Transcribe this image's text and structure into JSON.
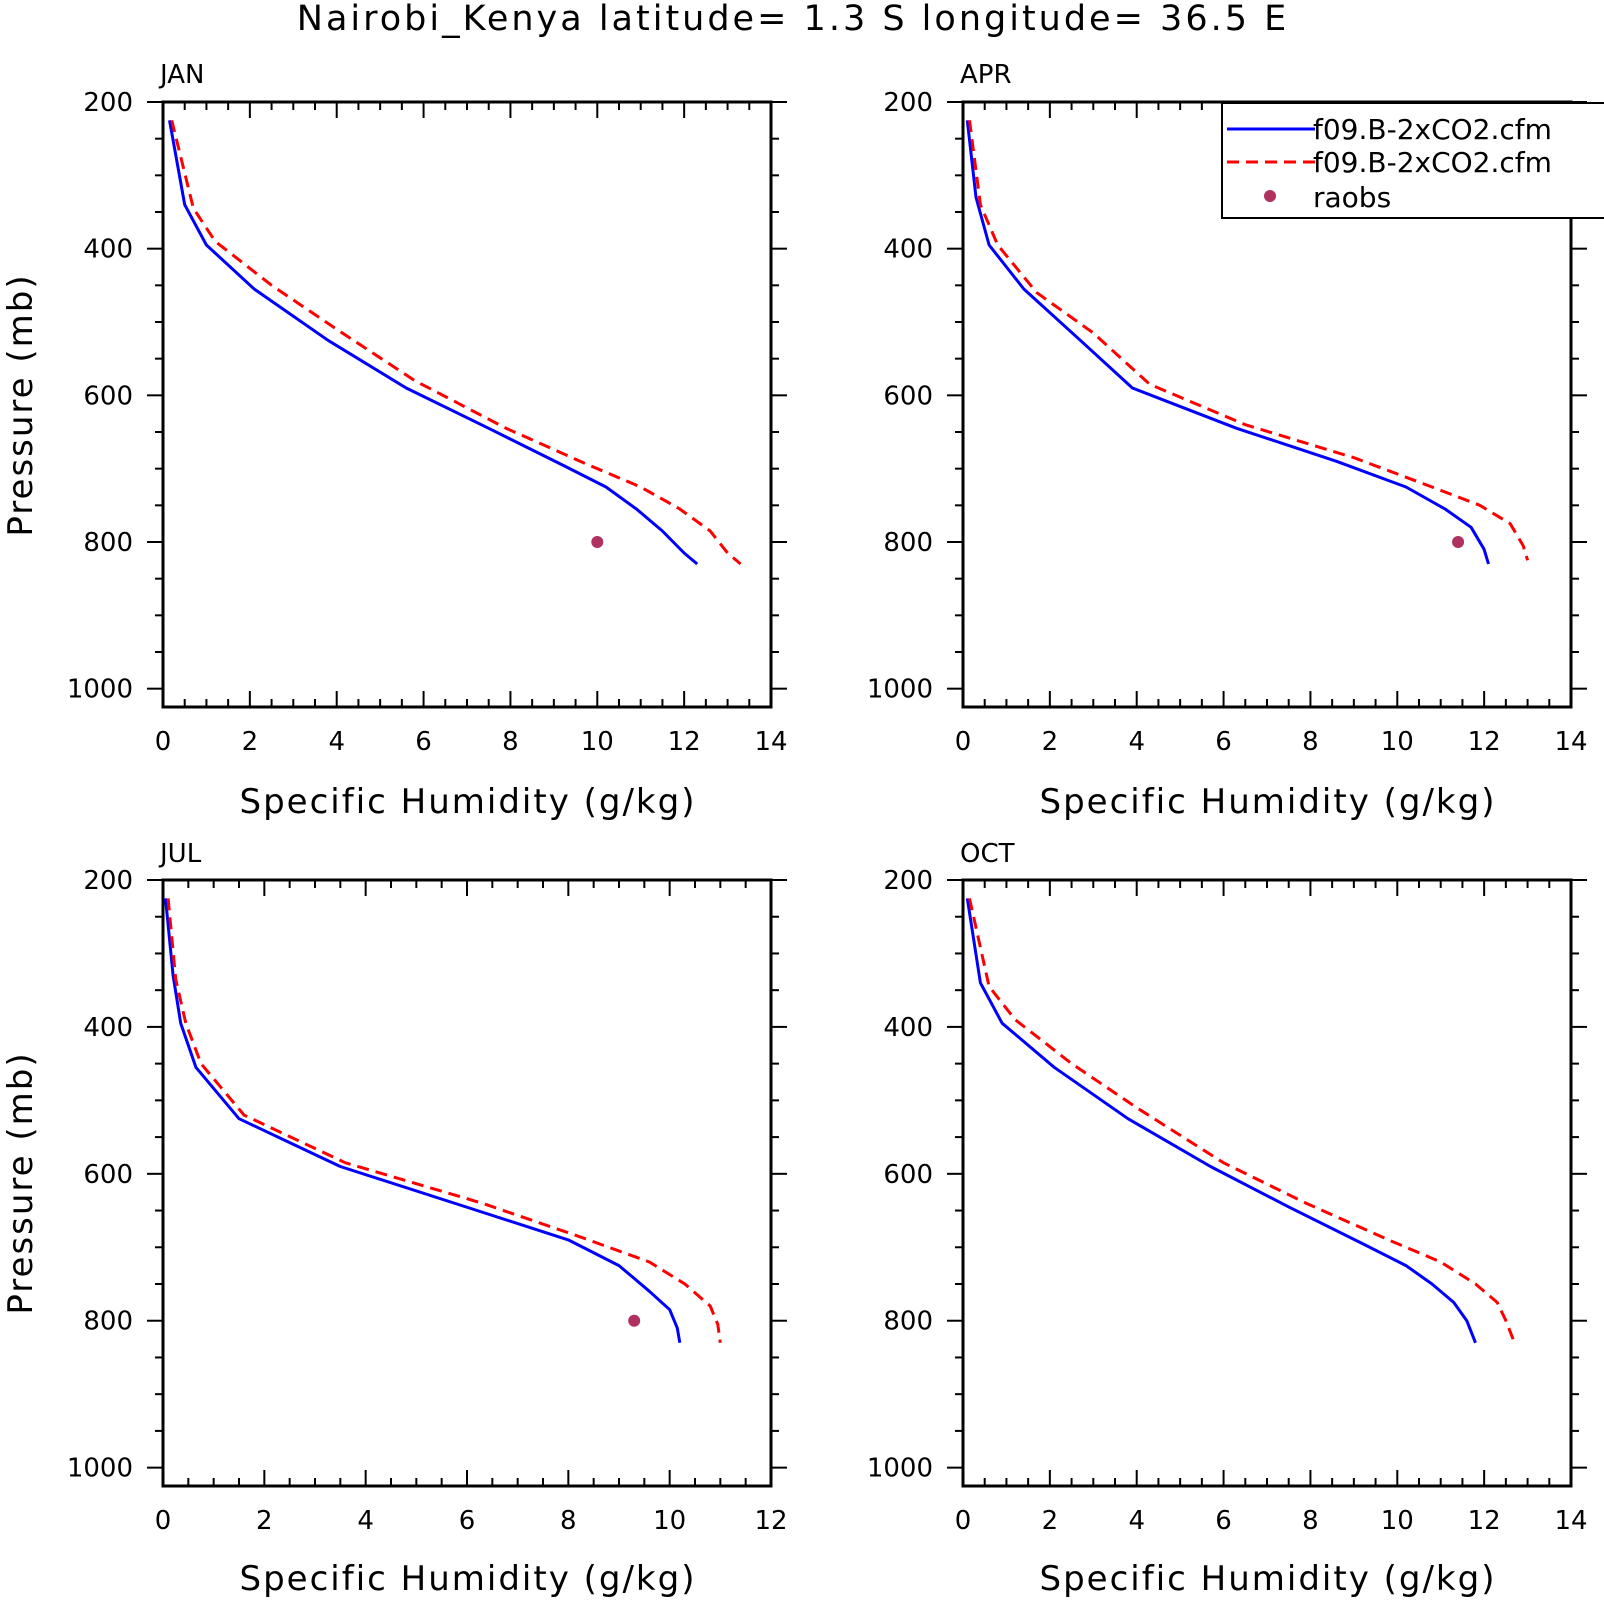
{
  "figure": {
    "title": "Nairobi_Kenya  latitude= 1.3 S longitude= 36.5 E"
  },
  "legend": {
    "entries": [
      {
        "label": "f09.B-2xCO2.cfm",
        "color": "#0000ff",
        "style": "solid"
      },
      {
        "label": "f09.B-2xCO2.cfm",
        "color": "#ff0000",
        "style": "dashed"
      },
      {
        "label": "raobs",
        "color": "#b03060",
        "style": "marker"
      }
    ]
  },
  "chart_data": [
    {
      "type": "line",
      "panel_label": "JAN",
      "xlabel": "Specific Humidity (g/kg)",
      "ylabel": "Pressure (mb)",
      "xlim": [
        0,
        14
      ],
      "ylim": [
        1025,
        200
      ],
      "x_ticks": [
        0,
        2,
        4,
        6,
        8,
        10,
        12,
        14
      ],
      "y_ticks": [
        200,
        400,
        600,
        800,
        1000
      ],
      "series": [
        {
          "color": "#0000ff",
          "style": "solid",
          "x": [
            0.15,
            0.5,
            1.0,
            2.1,
            3.8,
            5.6,
            7.5,
            9.2,
            10.2,
            10.9,
            11.5,
            12.0,
            12.3
          ],
          "y": [
            225,
            340,
            395,
            455,
            525,
            590,
            645,
            695,
            725,
            755,
            785,
            815,
            830
          ]
        },
        {
          "color": "#ff0000",
          "style": "dashed",
          "x": [
            0.2,
            0.7,
            1.2,
            2.5,
            4.0,
            5.8,
            7.9,
            9.8,
            11.0,
            11.9,
            12.6,
            13.0,
            13.3
          ],
          "y": [
            225,
            345,
            390,
            450,
            510,
            580,
            645,
            695,
            725,
            755,
            785,
            815,
            830
          ]
        }
      ],
      "points": [
        {
          "x": 10.0,
          "y": 800,
          "color": "#b03060"
        }
      ]
    },
    {
      "type": "line",
      "panel_label": "APR",
      "xlabel": "Specific Humidity (g/kg)",
      "ylabel": "",
      "xlim": [
        0,
        14
      ],
      "ylim": [
        1025,
        200
      ],
      "x_ticks": [
        0,
        2,
        4,
        6,
        8,
        10,
        12,
        14
      ],
      "y_ticks": [
        200,
        400,
        600,
        800,
        1000
      ],
      "series": [
        {
          "color": "#0000ff",
          "style": "solid",
          "x": [
            0.1,
            0.3,
            0.6,
            1.4,
            2.7,
            3.9,
            6.3,
            8.6,
            10.2,
            11.1,
            11.7,
            12.0,
            12.1
          ],
          "y": [
            225,
            330,
            395,
            455,
            525,
            590,
            645,
            690,
            725,
            755,
            780,
            810,
            830
          ]
        },
        {
          "color": "#ff0000",
          "style": "dashed",
          "x": [
            0.15,
            0.4,
            0.8,
            1.7,
            3.0,
            4.3,
            6.5,
            9.0,
            10.8,
            11.9,
            12.6,
            12.9,
            13.0
          ],
          "y": [
            225,
            340,
            395,
            460,
            515,
            585,
            640,
            685,
            725,
            750,
            775,
            805,
            825
          ]
        }
      ],
      "points": [
        {
          "x": 11.4,
          "y": 800,
          "color": "#b03060"
        }
      ]
    },
    {
      "type": "line",
      "panel_label": "JUL",
      "xlabel": "Specific Humidity (g/kg)",
      "ylabel": "Pressure (mb)",
      "xlim": [
        0,
        12
      ],
      "ylim": [
        1025,
        200
      ],
      "x_ticks": [
        0,
        2,
        4,
        6,
        8,
        10,
        12
      ],
      "y_ticks": [
        200,
        400,
        600,
        800,
        1000
      ],
      "series": [
        {
          "color": "#0000ff",
          "style": "solid",
          "x": [
            0.05,
            0.2,
            0.35,
            0.65,
            1.5,
            3.5,
            6.2,
            8.0,
            9.0,
            9.6,
            10.0,
            10.15,
            10.2
          ],
          "y": [
            225,
            330,
            395,
            455,
            525,
            590,
            650,
            690,
            725,
            760,
            785,
            810,
            830
          ]
        },
        {
          "color": "#ff0000",
          "style": "dashed",
          "x": [
            0.1,
            0.25,
            0.45,
            0.75,
            1.6,
            3.6,
            6.3,
            8.2,
            9.6,
            10.3,
            10.8,
            10.95,
            11.0
          ],
          "y": [
            225,
            335,
            395,
            450,
            520,
            585,
            640,
            685,
            720,
            750,
            780,
            805,
            830
          ]
        }
      ],
      "points": [
        {
          "x": 9.3,
          "y": 800,
          "color": "#b03060"
        }
      ]
    },
    {
      "type": "line",
      "panel_label": "OCT",
      "xlabel": "Specific Humidity (g/kg)",
      "ylabel": "",
      "xlim": [
        0,
        14
      ],
      "ylim": [
        1025,
        200
      ],
      "x_ticks": [
        0,
        2,
        4,
        6,
        8,
        10,
        12,
        14
      ],
      "y_ticks": [
        200,
        400,
        600,
        800,
        1000
      ],
      "series": [
        {
          "color": "#0000ff",
          "style": "solid",
          "x": [
            0.1,
            0.4,
            0.9,
            2.1,
            3.8,
            5.7,
            7.5,
            9.2,
            10.2,
            10.8,
            11.3,
            11.6,
            11.8
          ],
          "y": [
            225,
            340,
            395,
            455,
            525,
            590,
            645,
            695,
            725,
            750,
            775,
            800,
            830
          ]
        },
        {
          "color": "#ff0000",
          "style": "dashed",
          "x": [
            0.15,
            0.6,
            1.2,
            2.5,
            4.0,
            6.0,
            7.9,
            9.8,
            11.0,
            11.8,
            12.3,
            12.5,
            12.7
          ],
          "y": [
            225,
            345,
            390,
            450,
            510,
            585,
            640,
            690,
            720,
            750,
            775,
            800,
            830
          ]
        }
      ],
      "points": []
    }
  ]
}
